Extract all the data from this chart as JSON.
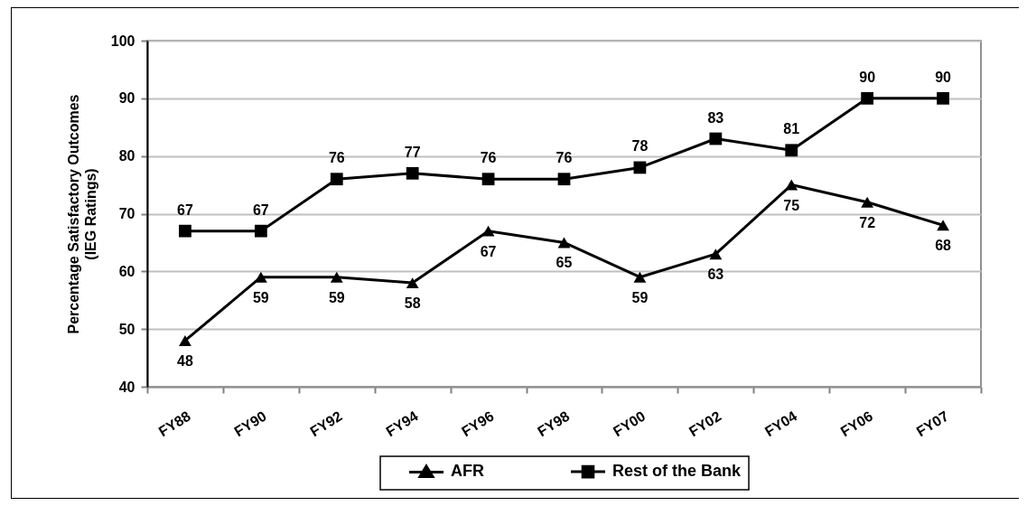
{
  "chart_data": {
    "type": "line",
    "ylabel": "Percentage Satisfactory Outcomes\n(IEG Ratings)",
    "categories": [
      "FY88",
      "FY90",
      "FY92",
      "FY94",
      "FY96",
      "FY98",
      "FY00",
      "FY02",
      "FY04",
      "FY06",
      "FY07"
    ],
    "series": [
      {
        "name": "AFR",
        "color": "#000000",
        "marker": "triangle",
        "values": [
          48,
          59,
          59,
          58,
          67,
          65,
          59,
          63,
          75,
          72,
          68
        ]
      },
      {
        "name": "Rest of the Bank",
        "color": "#000000",
        "marker": "square",
        "values": [
          67,
          67,
          76,
          77,
          76,
          76,
          78,
          83,
          81,
          90,
          90
        ]
      }
    ],
    "ylim": [
      40,
      100
    ],
    "yticks": [
      40,
      50,
      60,
      70,
      80,
      90,
      100
    ],
    "grid": "y",
    "legend": "bottom",
    "data_labels": true,
    "line_style": "solid"
  }
}
